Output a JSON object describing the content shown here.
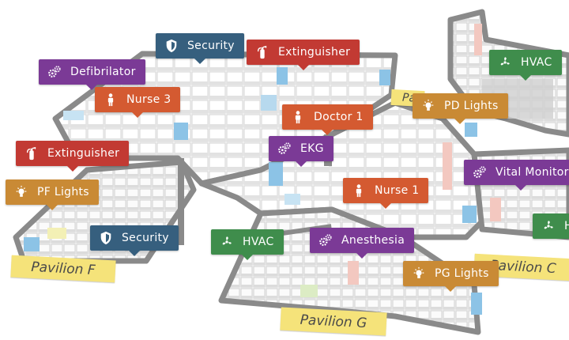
{
  "colors": {
    "security": "#365f7e",
    "extinguisher": "#c23a33",
    "equipment": "#7b3a96",
    "staff": "#d45a31",
    "lights": "#c98a35",
    "hvac": "#3f8d4c",
    "pavilion": "#f5e37a",
    "floor": "#f4f4f4",
    "wall": "#8a8a8a"
  },
  "pavilions": [
    {
      "id": "f",
      "label": "Pavilion F"
    },
    {
      "id": "g",
      "label": "Pavilion G"
    },
    {
      "id": "c",
      "label": "Pavilion C"
    }
  ],
  "markers": [
    {
      "id": "security-top",
      "label": "Security",
      "icon": "shield-icon",
      "category": "security"
    },
    {
      "id": "extinguisher-top",
      "label": "Extinguisher",
      "icon": "fire-extinguisher-icon",
      "category": "extinguisher"
    },
    {
      "id": "defibrilator",
      "label": "Defibrilator",
      "icon": "gears-icon",
      "category": "equipment"
    },
    {
      "id": "nurse-3",
      "label": "Nurse 3",
      "icon": "person-icon",
      "category": "staff"
    },
    {
      "id": "doctor-1",
      "label": "Doctor 1",
      "icon": "person-icon",
      "category": "staff"
    },
    {
      "id": "hvac-top",
      "label": "HVAC",
      "icon": "fan-icon",
      "category": "hvac"
    },
    {
      "id": "pd-lights",
      "label": "PD Lights",
      "icon": "lightbulb-icon",
      "category": "lights"
    },
    {
      "id": "extinguisher-left",
      "label": "Extinguisher",
      "icon": "fire-extinguisher-icon",
      "category": "extinguisher"
    },
    {
      "id": "ekg",
      "label": "EKG",
      "icon": "gears-icon",
      "category": "equipment"
    },
    {
      "id": "vital-monitor",
      "label": "Vital Monitor",
      "icon": "gears-icon",
      "category": "equipment"
    },
    {
      "id": "pf-lights",
      "label": "PF Lights",
      "icon": "lightbulb-icon",
      "category": "lights"
    },
    {
      "id": "nurse-1",
      "label": "Nurse 1",
      "icon": "person-icon",
      "category": "staff"
    },
    {
      "id": "security-bottom",
      "label": "Security",
      "icon": "shield-icon",
      "category": "security"
    },
    {
      "id": "hvac-middle",
      "label": "HVAC",
      "icon": "fan-icon",
      "category": "hvac"
    },
    {
      "id": "anesthesia",
      "label": "Anesthesia",
      "icon": "gears-icon",
      "category": "equipment"
    },
    {
      "id": "pg-lights",
      "label": "PG Lights",
      "icon": "lightbulb-icon",
      "category": "lights"
    },
    {
      "id": "hvac-right",
      "label": "HV",
      "icon": "fan-icon",
      "category": "hvac"
    }
  ],
  "partial_labels": [
    {
      "id": "pavilion-d-partial",
      "label": "Pa"
    }
  ]
}
